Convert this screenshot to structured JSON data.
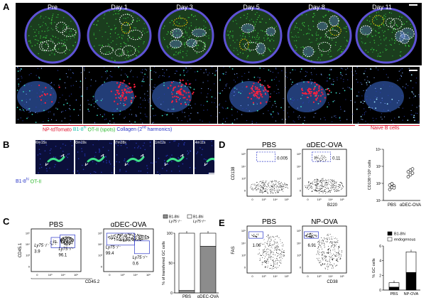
{
  "figure": {
    "panels": {
      "A": {
        "letter": "A",
        "timepoints": [
          "Pre",
          "Day 1",
          "Day 3",
          "Day 5",
          "Day 8",
          "Day 11"
        ],
        "legend": {
          "np": "NP-tdTomato",
          "b18": "B1-8",
          "b18_sup": "hi",
          "ot2": "OT-II (spots)",
          "collagen": "Collagen (2",
          "collagen_sup": "nd",
          "collagen_end": " harmonics)",
          "naive": "Naive B cells"
        }
      },
      "B": {
        "letter": "B",
        "times": [
          "00m15s",
          "03m19s",
          "07m28s",
          "11m12s",
          "14m11s"
        ],
        "legend_b18": "B1-8",
        "legend_b18_sup": "hi",
        "legend_ot2": "OT-II"
      },
      "C": {
        "letter": "C",
        "plots": [
          {
            "title": "PBS",
            "ly75_ko": "Ly75⁻/⁻",
            "ly75_ko_val": "3.9",
            "ly75_wt": "Ly75⁺/⁺",
            "ly75_wt_val": "96.1"
          },
          {
            "title": "αDEC-OVA",
            "ly75_ko": "Ly75⁻/⁻",
            "ly75_ko_val": "99.4",
            "ly75_wt": "Ly75⁺/⁺",
            "ly75_wt_val": "0.6"
          }
        ],
        "yaxis": "CD45.1",
        "xaxis": "CD45.2",
        "ticks": [
          "0",
          "10³",
          "10⁴",
          "10⁵"
        ],
        "bar": {
          "ylabel": "% of transferred GC cells",
          "yticks": [
            "0",
            "50",
            "100"
          ],
          "legend_a": "B1-8",
          "legend_a_sup": "hi",
          "legend_a2": "Ly75⁻/⁻",
          "legend_b": "B1-8",
          "legend_b_sup": "hi",
          "legend_b2": "Ly75⁺/⁺"
        }
      },
      "D": {
        "letter": "D",
        "plots": [
          {
            "title": "PBS",
            "value": "0.005"
          },
          {
            "title": "αDEC-OVA",
            "value": "0.11"
          }
        ],
        "yaxis": "CD138",
        "xaxis": "B220",
        "ticks": [
          "0",
          "10³",
          "10⁴",
          "10⁵"
        ],
        "scatter": {
          "ylabel": "CD138⁺/10⁶ cells",
          "yticks": [
            "10¹",
            "10²",
            "10³",
            "10⁴"
          ],
          "categories": [
            "PBS",
            "αDEC-OVA"
          ]
        }
      },
      "E": {
        "letter": "E",
        "plots": [
          {
            "title": "PBS",
            "value": "1.06"
          },
          {
            "title": "NP-OVA",
            "value": "6.91"
          }
        ],
        "yaxis": "FAS",
        "xaxis": "CD38",
        "ticks": [
          "0",
          "10³",
          "10⁴",
          "10⁵"
        ],
        "bar": {
          "ylabel": "% GC cells",
          "yticks": [
            "0",
            "2",
            "4",
            "6"
          ],
          "legend_a": "B1-8",
          "legend_a_sup": "hi",
          "legend_b": "endogenous",
          "categories": [
            "PBS",
            "NP-OVA"
          ]
        }
      }
    }
  },
  "chart_data": [
    {
      "type": "bar",
      "panel": "C",
      "categories": [
        "PBS",
        "αDEC-OVA"
      ],
      "series": [
        {
          "name": "B1-8hi Ly75-/-",
          "values": [
            4,
            78
          ]
        },
        {
          "name": "B1-8hi Ly75+/+",
          "values": [
            96,
            22
          ]
        }
      ],
      "ylabel": "% of transferred GC cells",
      "ylim": [
        0,
        100
      ],
      "stacked": true,
      "colors": {
        "B1-8hi Ly75-/-": "#8c8c8c",
        "B1-8hi Ly75+/+": "#ffffff"
      }
    },
    {
      "type": "scatter",
      "panel": "D",
      "categories": [
        "PBS",
        "αDEC-OVA"
      ],
      "series": [
        {
          "category": "PBS",
          "values": [
            45,
            60,
            70,
            80,
            95,
            55
          ]
        },
        {
          "category": "αDEC-OVA",
          "values": [
            250,
            320,
            400,
            480,
            600,
            700
          ]
        }
      ],
      "ylabel": "CD138⁺/10⁶ cells",
      "yscale": "log",
      "ylim": [
        10,
        10000
      ]
    },
    {
      "type": "bar",
      "panel": "E",
      "categories": [
        "PBS",
        "NP-OVA"
      ],
      "series": [
        {
          "name": "B1-8hi",
          "values": [
            0.4,
            2.4
          ]
        },
        {
          "name": "endogenous",
          "values": [
            0.6,
            2.8
          ]
        }
      ],
      "ylabel": "% GC cells",
      "ylim": [
        0,
        6
      ],
      "stacked": true,
      "colors": {
        "B1-8hi": "#000000",
        "endogenous": "#ffffff"
      }
    }
  ]
}
